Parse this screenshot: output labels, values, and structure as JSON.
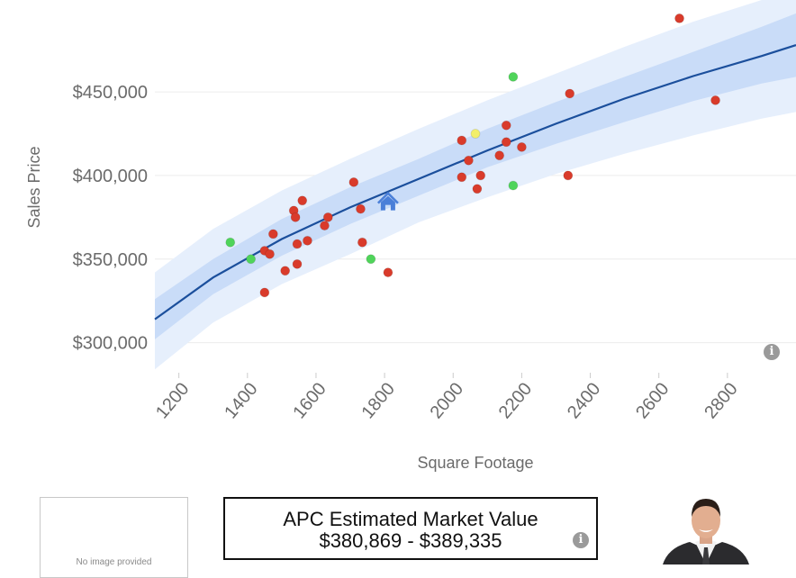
{
  "chart_data": {
    "type": "scatter",
    "title": "",
    "xlabel": "Square Footage",
    "ylabel": "Sales Price",
    "xlim": [
      1130,
      3000
    ],
    "ylim": [
      282000,
      505000
    ],
    "x_ticks": [
      1200,
      1400,
      1600,
      1800,
      2000,
      2200,
      2400,
      2600,
      2800
    ],
    "y_ticks": [
      300000,
      350000,
      400000,
      450000
    ],
    "y_tick_labels": [
      "$300,000",
      "$350,000",
      "$400,000",
      "$450,000"
    ],
    "grid": "horizontal",
    "colors": {
      "trend_line": "#1b4f9c",
      "inner_band": "#c9dcf8",
      "outer_band": "#e6effc",
      "red_point": "#d93b2b",
      "green_point": "#4fd45a",
      "yellow_point": "#f2ef6a",
      "subject_home": "#4a7fd8"
    },
    "trend_line": {
      "x": [
        1130,
        1300,
        1500,
        1700,
        1900,
        2100,
        2300,
        2500,
        2700,
        2900,
        3000
      ],
      "y": [
        314000,
        339000,
        362000,
        381000,
        398000,
        415000,
        431000,
        446000,
        459500,
        471500,
        478000
      ]
    },
    "inner_band": {
      "x": [
        1130,
        1300,
        1500,
        1700,
        1900,
        2100,
        2300,
        2500,
        2700,
        2900,
        3000
      ],
      "lower": [
        302000,
        329000,
        352000,
        371000,
        388000,
        405000,
        419000,
        432000,
        444500,
        455000,
        459000
      ],
      "upper": [
        326000,
        350000,
        374000,
        393000,
        410000,
        428000,
        444000,
        459000,
        474000,
        489000,
        497000
      ]
    },
    "outer_band": {
      "x": [
        1130,
        1300,
        1500,
        1700,
        1900,
        2100,
        2300,
        2500,
        2700,
        2900,
        3000
      ],
      "lower": [
        284000,
        312000,
        335000,
        353000,
        372000,
        387000,
        401000,
        413000,
        424000,
        434000,
        438000
      ],
      "upper": [
        342000,
        368000,
        391000,
        410000,
        428000,
        445000,
        461000,
        477000,
        492000,
        505000,
        505000
      ]
    },
    "series": [
      {
        "marker": "red",
        "points": [
          [
            1450,
            330000
          ],
          [
            1450,
            355000
          ],
          [
            1465,
            353000
          ],
          [
            1475,
            365000
          ],
          [
            1510,
            343000
          ],
          [
            1535,
            379000
          ],
          [
            1540,
            375000
          ],
          [
            1545,
            347000
          ],
          [
            1545,
            359000
          ],
          [
            1560,
            385000
          ],
          [
            1575,
            361000
          ],
          [
            1625,
            370000
          ],
          [
            1635,
            375000
          ],
          [
            1710,
            396000
          ],
          [
            1730,
            380000
          ],
          [
            1735,
            360000
          ],
          [
            1810,
            342000
          ],
          [
            2025,
            399000
          ],
          [
            2025,
            421000
          ],
          [
            2045,
            409000
          ],
          [
            2070,
            392000
          ],
          [
            2080,
            400000
          ],
          [
            2135,
            412000
          ],
          [
            2155,
            420000
          ],
          [
            2155,
            430000
          ],
          [
            2200,
            417000
          ],
          [
            2335,
            400000
          ],
          [
            2340,
            449000
          ],
          [
            2660,
            494000
          ],
          [
            2765,
            445000
          ]
        ]
      },
      {
        "marker": "green",
        "points": [
          [
            1350,
            360000
          ],
          [
            1410,
            350000
          ],
          [
            1760,
            350000
          ],
          [
            2175,
            394000
          ],
          [
            2175,
            459000
          ]
        ]
      },
      {
        "marker": "yellow",
        "points": [
          [
            2065,
            425000
          ]
        ]
      }
    ],
    "subject_home": {
      "x": 1810,
      "y": 384000,
      "icon": "home-icon"
    }
  },
  "estimate": {
    "title": "APC Estimated Market Value",
    "range": "$380,869 - $389,335"
  },
  "image_box": {
    "placeholder": "No image provided"
  },
  "icons": {
    "chart_info": "info-icon",
    "estimate_info": "info-icon"
  }
}
